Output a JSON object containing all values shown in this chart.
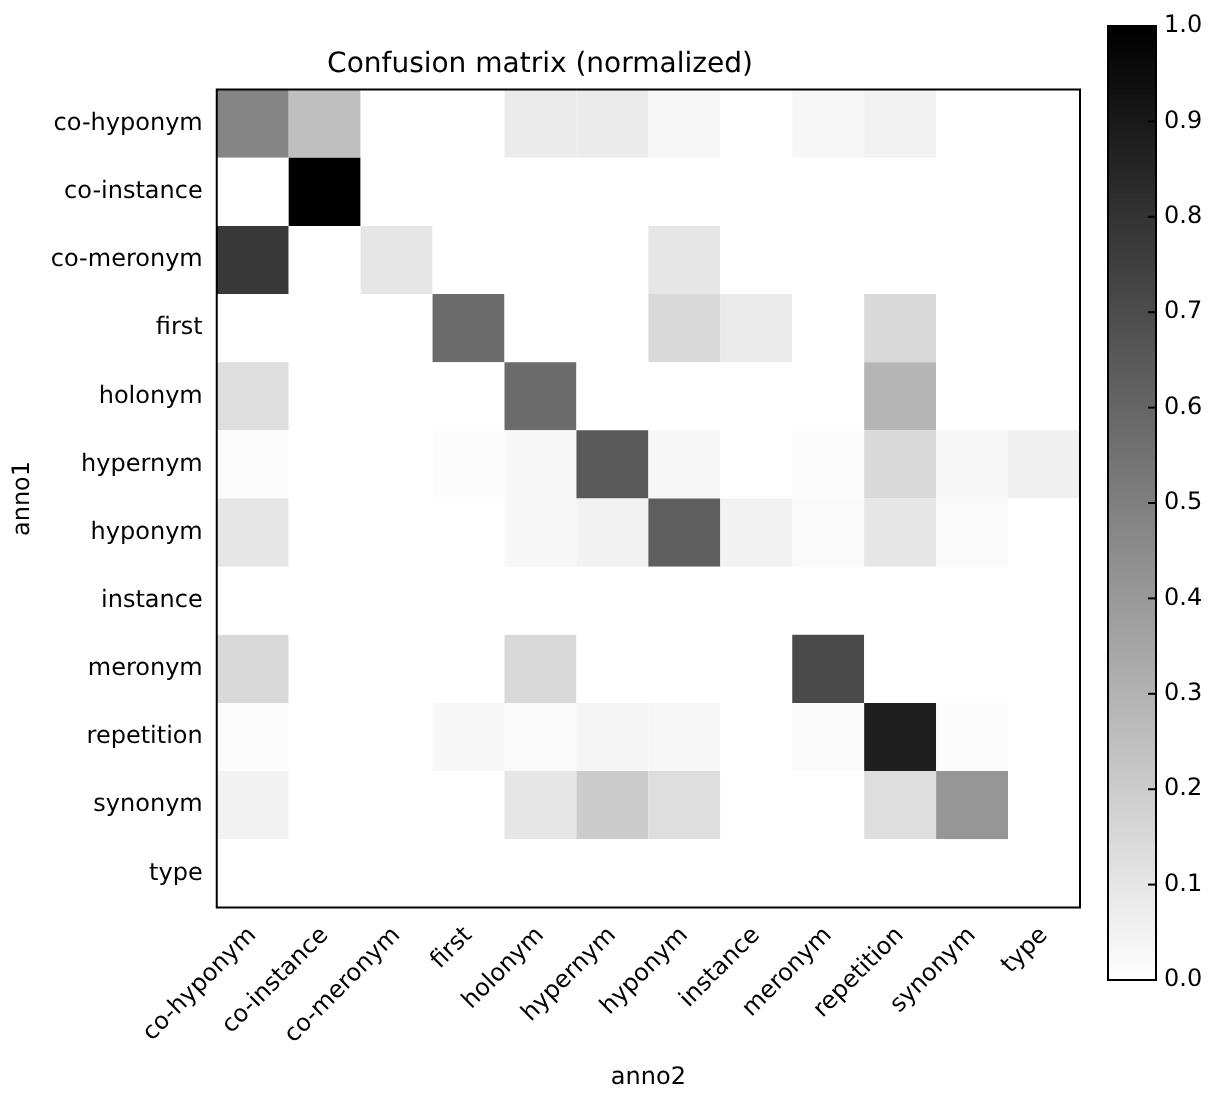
{
  "chart_data": {
    "type": "heatmap",
    "title": "Confusion matrix (normalized)",
    "xlabel": "anno2",
    "ylabel": "anno1",
    "categories": [
      "co-hyponym",
      "co-instance",
      "co-meronym",
      "first",
      "holonym",
      "hypernym",
      "hyponym",
      "instance",
      "meronym",
      "repetition",
      "synonym",
      "type"
    ],
    "y_categories": [
      "co-hyponym",
      "co-instance",
      "co-meronym",
      "first",
      "holonym",
      "hypernym",
      "hyponym",
      "instance",
      "meronym",
      "repetition",
      "synonym",
      "type"
    ],
    "cells": [
      [
        0.48,
        0.25,
        0,
        0,
        0.08,
        0.08,
        0.03,
        0,
        0.03,
        0.05,
        0,
        0
      ],
      [
        0,
        1.0,
        0,
        0,
        0,
        0,
        0,
        0,
        0,
        0,
        0,
        0
      ],
      [
        0.78,
        0,
        0.1,
        0,
        0,
        0,
        0.1,
        0,
        0,
        0,
        0,
        0
      ],
      [
        0,
        0,
        0,
        0.58,
        0,
        0,
        0.15,
        0.08,
        0,
        0.15,
        0,
        0
      ],
      [
        0.13,
        0,
        0,
        0,
        0.58,
        0,
        0,
        0,
        0,
        0.29,
        0,
        0
      ],
      [
        0.01,
        0,
        0,
        0.01,
        0.03,
        0.65,
        0.03,
        0,
        0.01,
        0.15,
        0.03,
        0.06
      ],
      [
        0.1,
        0,
        0,
        0,
        0.03,
        0.05,
        0.63,
        0.05,
        0.02,
        0.1,
        0.02,
        0
      ],
      [
        0,
        0,
        0,
        0,
        0,
        0,
        0,
        0,
        0,
        0,
        0,
        0
      ],
      [
        0.15,
        0,
        0,
        0,
        0.15,
        0,
        0,
        0,
        0.71,
        0,
        0,
        0
      ],
      [
        0.01,
        0,
        0,
        0.03,
        0.02,
        0.04,
        0.03,
        0,
        0.02,
        0.88,
        0.01,
        0
      ],
      [
        0.05,
        0,
        0,
        0,
        0.1,
        0.2,
        0.13,
        0,
        0,
        0.13,
        0.41,
        0
      ],
      [
        0,
        0,
        0,
        0,
        0,
        0,
        0,
        0,
        0,
        0,
        0,
        0
      ]
    ],
    "clim": [
      0,
      1
    ],
    "cticks": [
      {
        "value": 0,
        "label": "0.0"
      },
      {
        "value": 0.1,
        "label": "0.1"
      },
      {
        "value": 0.2,
        "label": "0.2"
      },
      {
        "value": 0.3,
        "label": "0.3"
      },
      {
        "value": 0.4,
        "label": "0.4"
      },
      {
        "value": 0.5,
        "label": "0.5"
      },
      {
        "value": 0.6,
        "label": "0.6"
      },
      {
        "value": 0.7,
        "label": "0.7"
      },
      {
        "value": 0.8,
        "label": "0.8"
      },
      {
        "value": 0.9,
        "label": "0.9"
      },
      {
        "value": 1,
        "label": "1.0"
      }
    ]
  }
}
